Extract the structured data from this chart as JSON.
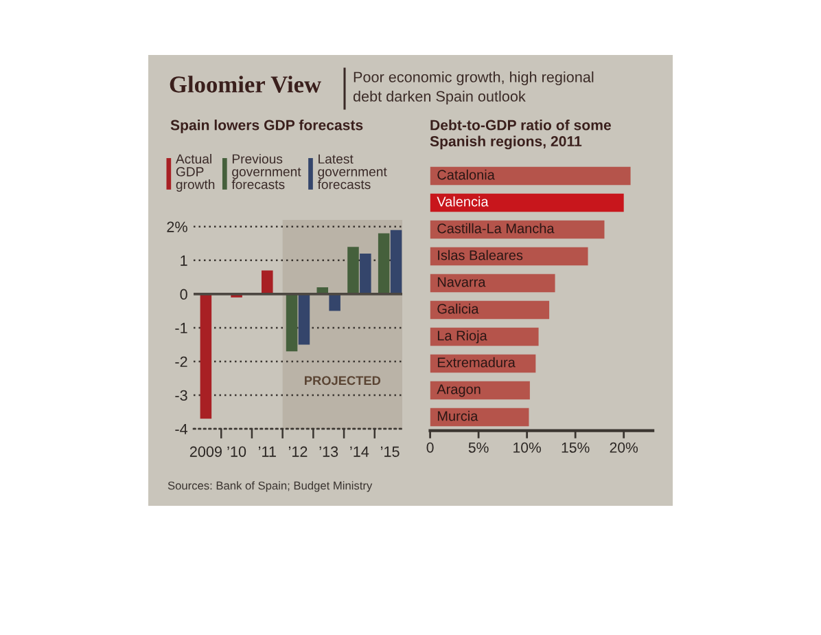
{
  "chart_data": [
    {
      "type": "bar",
      "title": "Spain lowers GDP forecasts",
      "x": [
        2009,
        2010,
        2011,
        2012,
        2013,
        2014,
        2015
      ],
      "series": [
        {
          "name": "Actual\nGDP\ngrowth",
          "color": "#a82024",
          "values": [
            -3.7,
            -0.1,
            0.7,
            null,
            null,
            null,
            null
          ]
        },
        {
          "name": "Previous\ngovernment\nforecasts",
          "color": "#45603c",
          "values": [
            null,
            null,
            null,
            -1.7,
            0.2,
            1.4,
            1.8
          ]
        },
        {
          "name": "Latest\ngovernment\nforecasts",
          "color": "#34456b",
          "values": [
            null,
            null,
            null,
            -1.5,
            -0.5,
            1.2,
            1.9
          ]
        }
      ],
      "xlim": [
        2008.6,
        2015.4
      ],
      "xticks": [
        2009,
        {
          "value": 2009.5,
          "label": null
        },
        {
          "value": 2010,
          "label": "’10"
        },
        {
          "value": 2010.5,
          "label": null
        },
        {
          "value": 2011,
          "label": "’11"
        },
        {
          "value": 2011.5,
          "label": null
        },
        {
          "value": 2012,
          "label": "’12"
        },
        {
          "value": 2012.5,
          "label": null
        },
        {
          "value": 2013,
          "label": "’13"
        },
        {
          "value": 2013.5,
          "label": null
        },
        {
          "value": 2014,
          "label": "’14"
        },
        {
          "value": 2014.5,
          "label": null
        },
        {
          "value": 2015,
          "label": "’15"
        }
      ],
      "ylim": [
        -4,
        2.2
      ],
      "yticks": [
        {
          "value": 2,
          "label": "2%"
        },
        1,
        0,
        -1,
        -2,
        -3,
        -4
      ],
      "grid": "y",
      "legend": "top",
      "ref_lines": [
        {
          "axis": "y",
          "value": 0,
          "color": "#4d4842"
        }
      ],
      "bands": [
        {
          "axis": "x",
          "from": 2011.5,
          "to": 2015.4,
          "label": "PROJECTED",
          "color": "#bab3a7"
        }
      ],
      "annotations": [
        "Gloomier View",
        "Poor economic growth, high regional\ndebt darken Spain outlook",
        "Sources: Bank of Spain; Budget Ministry"
      ]
    },
    {
      "type": "bar",
      "orientation": "horizontal",
      "title": "Debt-to-GDP ratio of some\nSpanish regions, 2011",
      "categories": [
        "Catalonia",
        "Valencia",
        "Castilla-La Mancha",
        "Islas Baleares",
        "Navarra",
        "Galicia",
        "La Rioja",
        "Extremadura",
        "Aragon",
        "Murcia"
      ],
      "values": [
        20.7,
        20.0,
        18.0,
        16.3,
        12.9,
        12.3,
        11.2,
        10.9,
        10.3,
        10.2
      ],
      "colors": [
        "#b5544b",
        "#c8161c",
        "#b5544b",
        "#b5544b",
        "#b5544b",
        "#b5544b",
        "#b5544b",
        "#b5544b",
        "#b5544b",
        "#b5544b"
      ],
      "xlim": [
        0,
        23
      ],
      "xticks": [
        0,
        {
          "value": 5,
          "label": "5%"
        },
        {
          "value": 10,
          "label": "10%"
        },
        {
          "value": 15,
          "label": "15%"
        },
        {
          "value": 20,
          "label": "20%"
        }
      ]
    }
  ]
}
